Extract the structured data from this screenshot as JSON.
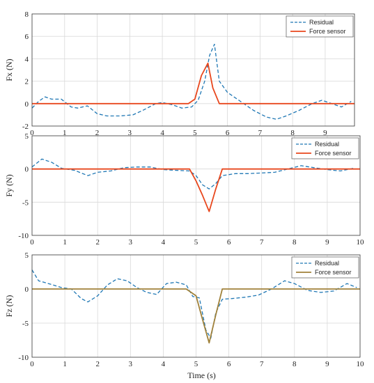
{
  "colors": {
    "residual": "#1f77b4",
    "force_sensor_fx": "#e8471d",
    "force_sensor_fy": "#e8471d",
    "force_sensor_fz": "#a0813a",
    "grid": "#d9d9d9"
  },
  "chart_data": [
    {
      "type": "line",
      "id": "fx",
      "ylabel": "Fx (N)",
      "xlabel": "",
      "xlim": [
        0,
        9.9
      ],
      "ylim": [
        -2,
        8
      ],
      "xticks": [
        "0",
        "1",
        "2",
        "3",
        "4",
        "5",
        "6",
        "7",
        "8",
        "9"
      ],
      "yticks": [
        "-2",
        "0",
        "2",
        "4",
        "6",
        "8"
      ],
      "legend": {
        "position": "top-right",
        "entries": [
          "Residual",
          "Force sensor"
        ]
      },
      "grid": true,
      "series": [
        {
          "name": "Residual",
          "style": "dashed",
          "x": [
            0,
            0.2,
            0.4,
            0.6,
            0.9,
            1.2,
            1.4,
            1.7,
            2.0,
            2.3,
            2.7,
            3.1,
            3.4,
            3.8,
            4.0,
            4.3,
            4.6,
            4.9,
            5.1,
            5.3,
            5.45,
            5.6,
            5.75,
            6.0,
            6.4,
            6.8,
            7.2,
            7.5,
            7.8,
            8.2,
            8.6,
            8.9,
            9.2,
            9.5,
            9.8
          ],
          "y": [
            -0.4,
            0.2,
            0.6,
            0.4,
            0.4,
            -0.3,
            -0.4,
            -0.2,
            -0.9,
            -1.1,
            -1.1,
            -1.0,
            -0.6,
            0.0,
            0.1,
            -0.1,
            -0.4,
            -0.3,
            0.3,
            2.0,
            4.3,
            5.3,
            2.0,
            1.0,
            0.2,
            -0.6,
            -1.2,
            -1.4,
            -1.1,
            -0.6,
            0.0,
            0.3,
            0.0,
            -0.3,
            0.2
          ]
        },
        {
          "name": "Force sensor",
          "style": "solid",
          "x": [
            0,
            4.8,
            5.0,
            5.2,
            5.4,
            5.55,
            5.75,
            9.9
          ],
          "y": [
            0,
            0,
            0.4,
            2.5,
            3.6,
            1.4,
            0.0,
            0.0
          ]
        }
      ]
    },
    {
      "type": "line",
      "id": "fy",
      "ylabel": "Fy (N)",
      "xlabel": "",
      "xlim": [
        0,
        10
      ],
      "ylim": [
        -10,
        5
      ],
      "xticks": [
        "0",
        "1",
        "2",
        "3",
        "4",
        "5",
        "6",
        "7",
        "8",
        "9",
        "10"
      ],
      "yticks": [
        "-10",
        "-5",
        "0",
        "5"
      ],
      "legend": {
        "position": "top-right",
        "entries": [
          "Residual",
          "Force sensor"
        ]
      },
      "grid": true,
      "series": [
        {
          "name": "Residual",
          "style": "dashed",
          "x": [
            0,
            0.3,
            0.6,
            0.9,
            1.3,
            1.7,
            2.0,
            2.4,
            2.8,
            3.2,
            3.6,
            4.0,
            4.4,
            4.8,
            5.0,
            5.2,
            5.4,
            5.6,
            5.8,
            6.2,
            6.6,
            7.0,
            7.4,
            7.8,
            8.2,
            8.6,
            9.0,
            9.4,
            9.8
          ],
          "y": [
            0.3,
            1.5,
            1.0,
            0.1,
            -0.2,
            -1.0,
            -0.5,
            -0.3,
            0.2,
            0.3,
            0.3,
            -0.1,
            -0.2,
            -0.3,
            -1.0,
            -2.4,
            -3.0,
            -2.2,
            -1.0,
            -0.7,
            -0.7,
            -0.6,
            -0.5,
            0.0,
            0.5,
            0.2,
            -0.1,
            -0.3,
            0.1
          ]
        },
        {
          "name": "Force sensor",
          "style": "solid",
          "x": [
            0,
            4.8,
            5.0,
            5.2,
            5.4,
            5.6,
            5.8,
            10.0
          ],
          "y": [
            0,
            0,
            -1.8,
            -4.0,
            -6.4,
            -3.0,
            0.0,
            0.0
          ]
        }
      ]
    },
    {
      "type": "line",
      "id": "fz",
      "ylabel": "Fz (N)",
      "xlabel": "Time (s)",
      "xlim": [
        0,
        10
      ],
      "ylim": [
        -10,
        5
      ],
      "xticks": [
        "0",
        "1",
        "2",
        "3",
        "4",
        "5",
        "6",
        "7",
        "8",
        "9",
        "10"
      ],
      "yticks": [
        "-10",
        "-5",
        "0",
        "5"
      ],
      "legend": {
        "position": "top-right",
        "entries": [
          "Residual",
          "Force sensor"
        ]
      },
      "grid": true,
      "series": [
        {
          "name": "Residual",
          "style": "dashed",
          "x": [
            0,
            0.2,
            0.5,
            0.9,
            1.2,
            1.5,
            1.7,
            2.0,
            2.3,
            2.6,
            2.9,
            3.2,
            3.5,
            3.8,
            4.1,
            4.4,
            4.7,
            4.9,
            5.1,
            5.3,
            5.45,
            5.6,
            5.8,
            6.1,
            6.5,
            6.9,
            7.3,
            7.7,
            8.0,
            8.4,
            8.8,
            9.2,
            9.6,
            9.9
          ],
          "y": [
            2.8,
            1.2,
            0.8,
            0.2,
            0.0,
            -1.4,
            -1.9,
            -1.0,
            0.6,
            1.5,
            1.2,
            0.2,
            -0.5,
            -0.8,
            0.8,
            1.0,
            0.6,
            -1.1,
            -1.3,
            -6.0,
            -7.2,
            -3.5,
            -1.5,
            -1.4,
            -1.2,
            -0.9,
            0.0,
            1.2,
            0.8,
            -0.2,
            -0.5,
            -0.3,
            0.8,
            0.2
          ]
        },
        {
          "name": "Force sensor",
          "style": "solid",
          "x": [
            0,
            4.7,
            5.0,
            5.2,
            5.4,
            5.6,
            5.8,
            10.0
          ],
          "y": [
            0,
            0,
            -1.0,
            -4.5,
            -7.9,
            -3.8,
            0.0,
            0.0
          ]
        }
      ]
    }
  ]
}
